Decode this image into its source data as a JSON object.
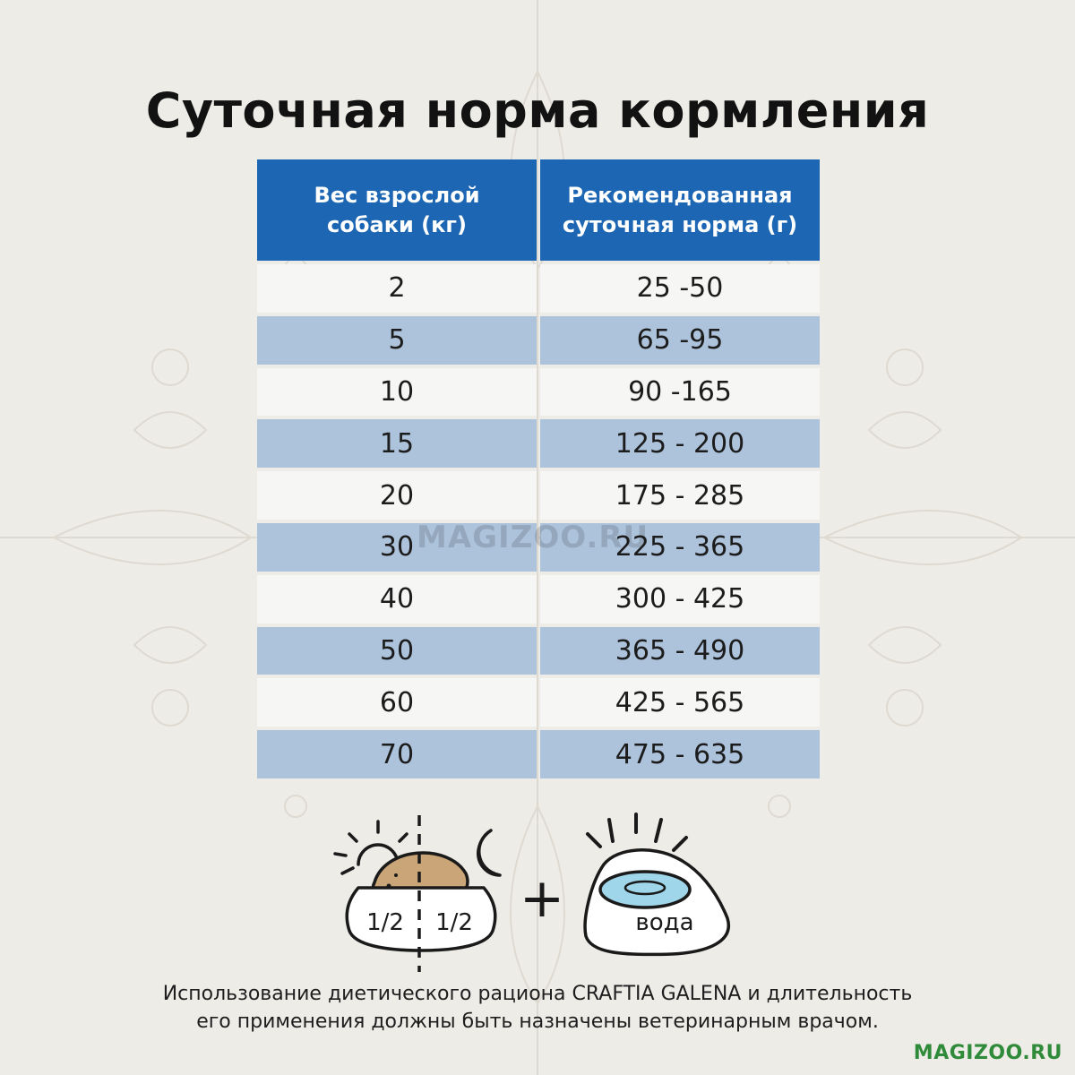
{
  "title": "Суточная норма кормления",
  "table": {
    "headers": [
      "Вес взрослой\nсобаки (кг)",
      "Рекомендованная\nсуточная норма (г)"
    ],
    "rows": [
      [
        "2",
        "25 -50"
      ],
      [
        "5",
        "65 -95"
      ],
      [
        "10",
        "90 -165"
      ],
      [
        "15",
        "125 - 200"
      ],
      [
        "20",
        "175 - 285"
      ],
      [
        "30",
        "225 - 365"
      ],
      [
        "40",
        "300 - 425"
      ],
      [
        "50",
        "365 - 490"
      ],
      [
        "60",
        "425 - 565"
      ],
      [
        "70",
        "475 - 635"
      ]
    ]
  },
  "watermark": "MAGIZOO.RU",
  "illustration": {
    "morning_portion": "1/2",
    "evening_portion": "1/2",
    "plus": "+",
    "water_label": "вода",
    "icons": [
      "sun-icon",
      "moon-icon",
      "food-bowl-icon",
      "water-bowl-icon"
    ]
  },
  "disclaimer": [
    "Использование диетического рациона CRAFTIA GALENA и длительность",
    "его применения должны быть назначены ветеринарным врачом."
  ],
  "brand": "MAGIZOO.RU",
  "colors": {
    "header_bg": "#1c66b3",
    "row_light": "#f6f6f5",
    "row_blue": "#adc3dc",
    "brand_green": "#2f8a3a",
    "background": "#eeece7"
  }
}
